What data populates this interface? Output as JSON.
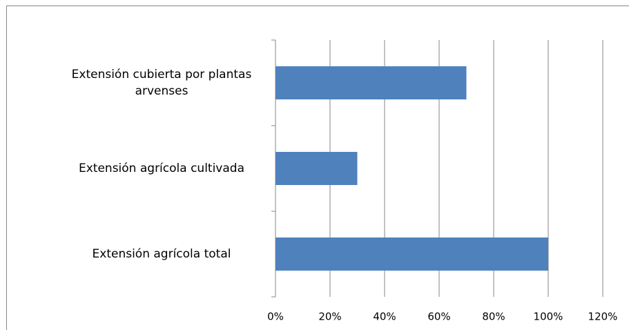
{
  "chart_data": {
    "type": "barh",
    "categories": [
      "Extensión cubierta por plantas arvenses",
      "Extensión agrícola cultivada",
      "Extensión agrícola total"
    ],
    "values": [
      70,
      30,
      100
    ],
    "color": "#4f81bd",
    "xlim": [
      0,
      120
    ],
    "xticks": [
      {
        "value": 0,
        "label": "0%"
      },
      {
        "value": 20,
        "label": "20%"
      },
      {
        "value": 40,
        "label": "40%"
      },
      {
        "value": 60,
        "label": "60%"
      },
      {
        "value": 80,
        "label": "80%"
      },
      {
        "value": 100,
        "label": "100%"
      },
      {
        "value": 120,
        "label": "120%"
      }
    ],
    "grid": true
  }
}
